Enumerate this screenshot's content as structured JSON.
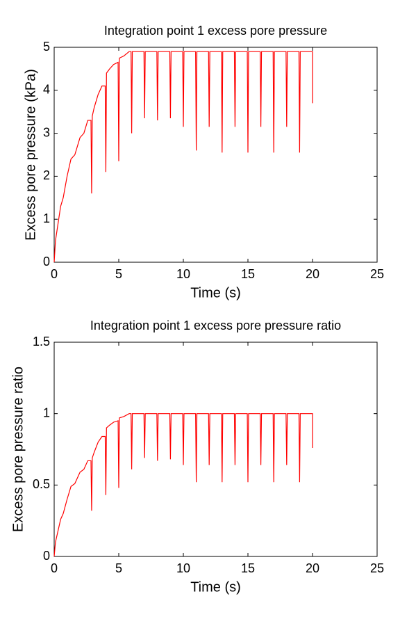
{
  "chart_data": [
    {
      "type": "line",
      "title": "Integration point 1 excess pore pressure",
      "xlabel": "Time (s)",
      "ylabel": "Excess pore pressure (kPa)",
      "color": "#ff0000",
      "xlim": [
        0,
        25
      ],
      "xticks": [
        0,
        5,
        10,
        15,
        20,
        25
      ],
      "ylim": [
        0,
        5
      ],
      "yticks": [
        0,
        1,
        2,
        3,
        4,
        5
      ],
      "x": [
        0,
        0.1,
        0.3,
        0.5,
        0.7,
        1.0,
        1.3,
        1.6,
        2.0,
        2.3,
        2.6,
        2.85,
        2.9,
        2.95,
        3.1,
        3.4,
        3.7,
        3.95,
        4.0,
        4.05,
        4.3,
        4.6,
        4.95,
        5.0,
        5.05,
        5.4,
        5.8,
        5.95,
        6.0,
        6.05,
        6.95,
        7.0,
        7.05,
        7.95,
        8.0,
        8.05,
        8.95,
        9.0,
        9.05,
        9.95,
        10.0,
        10.05,
        10.95,
        11.0,
        11.05,
        11.95,
        12.0,
        12.05,
        12.95,
        13.0,
        13.05,
        13.95,
        14.0,
        14.05,
        14.95,
        15.0,
        15.05,
        15.95,
        16.0,
        16.05,
        16.95,
        17.0,
        17.05,
        17.95,
        18.0,
        18.05,
        18.95,
        19.0,
        19.05,
        19.95,
        20.0,
        20.0
      ],
      "values": [
        0,
        0.5,
        0.9,
        1.3,
        1.5,
        2.0,
        2.4,
        2.5,
        2.9,
        3.0,
        3.3,
        3.3,
        1.6,
        3.4,
        3.6,
        3.9,
        4.1,
        4.1,
        2.1,
        4.4,
        4.5,
        4.6,
        4.65,
        2.35,
        4.75,
        4.8,
        4.9,
        4.9,
        3.0,
        4.9,
        4.9,
        3.35,
        4.9,
        4.9,
        3.3,
        4.9,
        4.9,
        3.35,
        4.9,
        4.9,
        3.15,
        4.9,
        4.9,
        2.6,
        4.9,
        4.9,
        3.15,
        4.9,
        4.9,
        2.55,
        4.9,
        4.9,
        3.15,
        4.9,
        4.9,
        2.55,
        4.9,
        4.9,
        3.15,
        4.9,
        4.9,
        2.55,
        4.9,
        4.9,
        3.15,
        4.9,
        4.9,
        2.55,
        4.9,
        4.9,
        4.9,
        3.7
      ]
    },
    {
      "type": "line",
      "title": "Integration point 1 excess pore pressure ratio",
      "xlabel": "Time (s)",
      "ylabel": "Excess pore pressure ratio",
      "color": "#ff0000",
      "xlim": [
        0,
        25
      ],
      "xticks": [
        0,
        5,
        10,
        15,
        20,
        25
      ],
      "ylim": [
        0,
        1.5
      ],
      "yticks": [
        0,
        0.5,
        1,
        1.5
      ],
      "x": [
        0,
        0.1,
        0.3,
        0.5,
        0.7,
        1.0,
        1.3,
        1.6,
        2.0,
        2.3,
        2.6,
        2.85,
        2.9,
        2.95,
        3.1,
        3.4,
        3.7,
        3.95,
        4.0,
        4.05,
        4.3,
        4.6,
        4.95,
        5.0,
        5.05,
        5.4,
        5.8,
        5.95,
        6.0,
        6.05,
        6.95,
        7.0,
        7.05,
        7.95,
        8.0,
        8.05,
        8.95,
        9.0,
        9.05,
        9.95,
        10.0,
        10.05,
        10.95,
        11.0,
        11.05,
        11.95,
        12.0,
        12.05,
        12.95,
        13.0,
        13.05,
        13.95,
        14.0,
        14.05,
        14.95,
        15.0,
        15.05,
        15.95,
        16.0,
        16.05,
        16.95,
        17.0,
        17.05,
        17.95,
        18.0,
        18.05,
        18.95,
        19.0,
        19.05,
        19.95,
        20.0,
        20.0
      ],
      "values": [
        0,
        0.1,
        0.18,
        0.26,
        0.3,
        0.4,
        0.49,
        0.51,
        0.59,
        0.61,
        0.67,
        0.67,
        0.32,
        0.69,
        0.73,
        0.8,
        0.84,
        0.84,
        0.43,
        0.9,
        0.92,
        0.94,
        0.95,
        0.48,
        0.97,
        0.98,
        1.0,
        1.0,
        0.61,
        1.0,
        1,
        0.69,
        1,
        1,
        0.67,
        1,
        1,
        0.68,
        1,
        1,
        0.64,
        1,
        1,
        0.52,
        1,
        1,
        0.64,
        1,
        1,
        0.52,
        1,
        1,
        0.64,
        1,
        1,
        0.52,
        1,
        1,
        0.64,
        1,
        1,
        0.52,
        1,
        1,
        0.64,
        1,
        1,
        0.52,
        1,
        1,
        1,
        0.76
      ]
    }
  ]
}
